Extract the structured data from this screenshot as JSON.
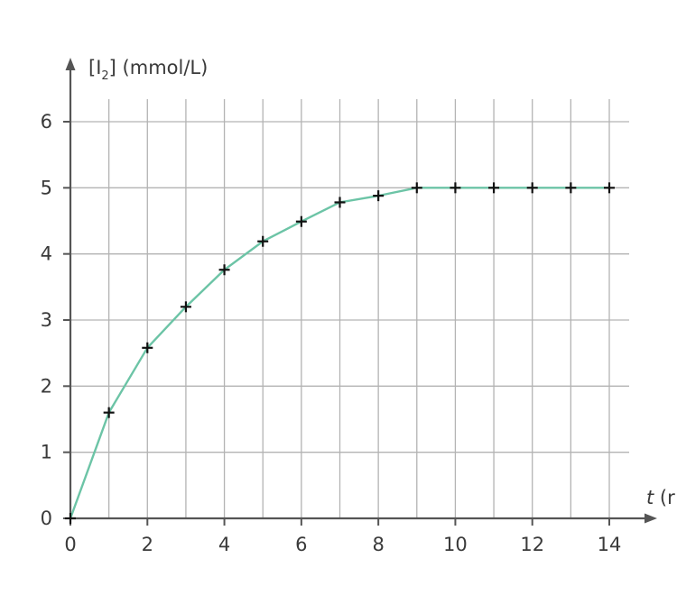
{
  "chart_data": {
    "type": "line",
    "ylabel": {
      "prefix": "[I",
      "subscript": "2",
      "suffix": "] (mmol/L)"
    },
    "xlabel": {
      "italic": "t",
      "rest": " (r"
    },
    "xlim": [
      0,
      14
    ],
    "ylim": [
      0,
      6
    ],
    "x_ticks": [
      "0",
      "2",
      "4",
      "6",
      "8",
      "10",
      "12",
      "14"
    ],
    "y_ticks": [
      "0",
      "1",
      "2",
      "3",
      "4",
      "5",
      "6"
    ],
    "grid": true,
    "line_color": "#6cc4a6",
    "marker": "cross",
    "series": [
      {
        "x": [
          0,
          1,
          2,
          3,
          4,
          5,
          6,
          7,
          8,
          9,
          10,
          11,
          12,
          13,
          14
        ],
        "y": [
          0,
          1.6,
          2.58,
          3.2,
          3.76,
          4.19,
          4.49,
          4.78,
          4.88,
          5.0,
          5.0,
          5.0,
          5.0,
          5.0,
          5.0
        ]
      }
    ]
  }
}
